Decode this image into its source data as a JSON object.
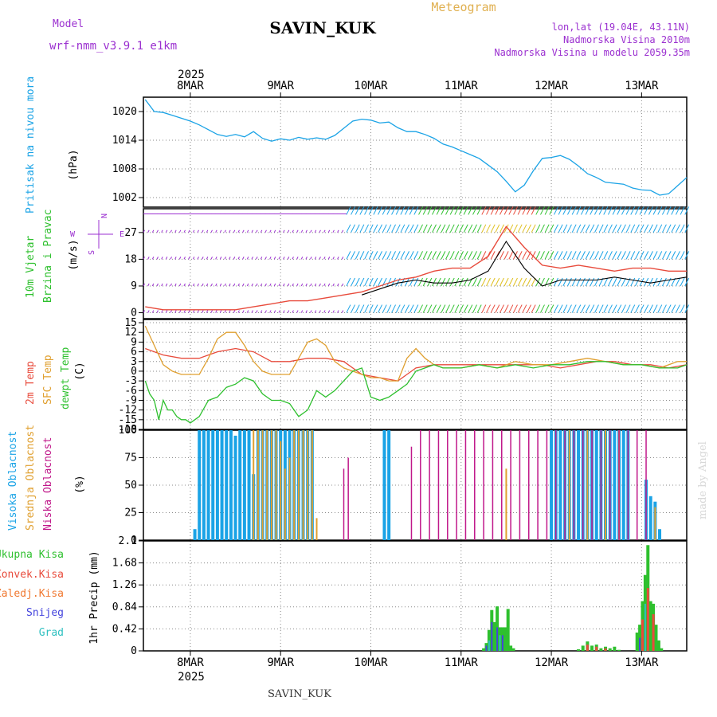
{
  "header": {
    "model_label": "Model",
    "model_name": "wrf-nmm_v3.9.1  e1km",
    "station": "SAVIN_KUK",
    "meteogram": "Meteogram",
    "lonlat": "lon,lat (19.04E, 43.11N)",
    "altitude": "Nadmorska Visina 2010m",
    "model_altitude": "Nadmorska Visina u modelu 2059.35m",
    "year_top": "2025",
    "year_bottom": "2025",
    "station_bottom": "SAVIN_KUK",
    "watermark": "made by Angel"
  },
  "colors": {
    "pressure": "#1aa3e6",
    "temp2m": "#e84b3c",
    "sfc": "#e0a030",
    "dewpt": "#2ec02e",
    "high_cloud": "#1aa3e6",
    "mid_cloud": "#e0a030",
    "low_cloud": "#c0188a",
    "total_precip": "#2ec02e",
    "conv_precip": "#e84b3c",
    "frozen_precip": "#f07830",
    "snow": "#4444dd",
    "hail": "#2ec0c0",
    "wind_label": "#2ec02e",
    "wind_compass": "#9b30d0",
    "model_text": "#9b30d0",
    "meteogram_text": "#e0b050"
  },
  "chart_data": [
    {
      "type": "line",
      "panel": "pressure",
      "ylabel_name": "Pritisak na nivou mora",
      "ylabel_unit": "(hPa)",
      "x_ticks": [
        "8MAR",
        "9MAR",
        "10MAR",
        "11MAR",
        "12MAR",
        "13MAR"
      ],
      "yticks": [
        1002,
        1008,
        1014,
        1020
      ],
      "ylim": [
        1000,
        1023
      ],
      "grid": true,
      "series": [
        {
          "x": [
            -0.5,
            -0.4,
            -0.3,
            -0.2,
            -0.1,
            0,
            0.1,
            0.2,
            0.3,
            0.4,
            0.5,
            0.6,
            0.7,
            0.8,
            0.9,
            1.0,
            1.1,
            1.2,
            1.3,
            1.4,
            1.5,
            1.6,
            1.7,
            1.8,
            1.9,
            2.0,
            2.1,
            2.2,
            2.3,
            2.4,
            2.5,
            2.6,
            2.7,
            2.8,
            2.9,
            3.0,
            3.1,
            3.2,
            3.3,
            3.4,
            3.5,
            3.6,
            3.7,
            3.8,
            3.9,
            4.0,
            4.1,
            4.2,
            4.3,
            4.4,
            4.5,
            4.6,
            4.7,
            4.8,
            4.9,
            5.0,
            5.1,
            5.2,
            5.3,
            5.4,
            5.5
          ],
          "values": [
            1022.5,
            1020,
            1019.8,
            1019.2,
            1018.6,
            1018.0,
            1017.2,
            1016.2,
            1015.2,
            1014.8,
            1015.2,
            1014.7,
            1015.8,
            1014.4,
            1013.8,
            1014.3,
            1014.0,
            1014.6,
            1014.2,
            1014.5,
            1014.2,
            1015.0,
            1016.5,
            1018.0,
            1018.4,
            1018.2,
            1017.6,
            1017.8,
            1016.6,
            1015.8,
            1015.8,
            1015.2,
            1014.4,
            1013.2,
            1012.6,
            1011.8,
            1011.0,
            1010.2,
            1008.8,
            1007.4,
            1005.4,
            1003.2,
            1004.6,
            1007.6,
            1010.2,
            1010.4,
            1010.8,
            1010.0,
            1008.6,
            1007.0,
            1006.2,
            1005.2,
            1005.0,
            1004.8,
            1004.0,
            1003.6,
            1003.5,
            1002.5,
            1002.8,
            1004.5,
            1006.2
          ]
        }
      ]
    },
    {
      "type": "line",
      "panel": "wind",
      "ylabel_name": "10m Vjetar",
      "ylabel_name2": "Brzina i Pravac",
      "ylabel_unit": "(m/s)",
      "compass": {
        "n": "N",
        "s": "S",
        "e": "E",
        "w": "W"
      },
      "yticks": [
        0,
        9,
        18,
        27
      ],
      "ylim": [
        -2,
        35
      ],
      "grid": true,
      "series": [
        {
          "name": "gust",
          "color": "#e84b3c",
          "x": [
            -0.5,
            -0.3,
            -0.1,
            0.1,
            0.3,
            0.5,
            0.7,
            0.9,
            1.1,
            1.3,
            1.5,
            1.7,
            1.9,
            2.1,
            2.3,
            2.5,
            2.7,
            2.9,
            3.1,
            3.3,
            3.5,
            3.7,
            3.9,
            4.1,
            4.3,
            4.5,
            4.7,
            4.9,
            5.1,
            5.3,
            5.5
          ],
          "values": [
            2,
            1,
            1,
            1,
            1,
            1,
            2,
            3,
            4,
            4,
            5,
            6,
            7,
            9,
            11,
            12,
            14,
            15,
            15,
            19,
            29,
            22,
            16,
            15,
            16,
            15,
            14,
            15,
            15,
            14,
            14
          ]
        },
        {
          "name": "mean",
          "color": "#000000",
          "x": [
            1.9,
            2.1,
            2.3,
            2.5,
            2.7,
            2.9,
            3.1,
            3.3,
            3.5,
            3.7,
            3.9,
            4.1,
            4.3,
            4.5,
            4.7,
            4.9,
            5.1,
            5.3,
            5.5
          ],
          "values": [
            6,
            8,
            10,
            11,
            10,
            10,
            11,
            14,
            24,
            15,
            9,
            11,
            11,
            11,
            12,
            11,
            10,
            11,
            12
          ]
        }
      ]
    },
    {
      "type": "line",
      "panel": "temperature",
      "ylabel_t2m": "2m Temp",
      "ylabel_sfc": "SFC Temp",
      "ylabel_dew": "dewpt Temp",
      "ylabel_unit": "(C)",
      "yticks": [
        -18,
        -15,
        -12,
        -9,
        -6,
        -3,
        0,
        3,
        6,
        9,
        12,
        15
      ],
      "ylim": [
        -18,
        16
      ],
      "grid": true,
      "series": [
        {
          "name": "2m Temp",
          "color": "#e84b3c",
          "x": [
            -0.5,
            -0.3,
            -0.1,
            0.1,
            0.3,
            0.5,
            0.7,
            0.9,
            1.1,
            1.3,
            1.5,
            1.7,
            1.9,
            2.1,
            2.3,
            2.5,
            2.7,
            2.9,
            3.1,
            3.3,
            3.5,
            3.7,
            3.9,
            4.1,
            4.3,
            4.5,
            4.7,
            4.9,
            5.1,
            5.3,
            5.5
          ],
          "values": [
            7,
            5,
            4,
            4,
            6,
            7,
            6,
            3,
            3,
            4,
            4,
            3,
            -1,
            -2,
            -3,
            1,
            2,
            2,
            2,
            2,
            2,
            2,
            2,
            1,
            2,
            3,
            3,
            2,
            2,
            1,
            2
          ]
        },
        {
          "name": "SFC Temp",
          "color": "#e0a030",
          "x": [
            -0.5,
            -0.4,
            -0.3,
            -0.2,
            -0.1,
            0,
            0.1,
            0.2,
            0.3,
            0.4,
            0.5,
            0.6,
            0.7,
            0.8,
            0.9,
            1.0,
            1.1,
            1.2,
            1.3,
            1.4,
            1.5,
            1.6,
            1.7,
            1.8,
            1.9,
            2.0,
            2.1,
            2.2,
            2.3,
            2.4,
            2.5,
            2.6,
            2.7,
            2.8,
            2.9,
            3.0,
            3.2,
            3.4,
            3.6,
            3.8,
            4.0,
            4.2,
            4.4,
            4.6,
            4.8,
            5.0,
            5.2,
            5.4,
            5.5
          ],
          "values": [
            14,
            8,
            2,
            0,
            -1,
            -1,
            -1,
            4,
            10,
            12,
            12,
            8,
            3,
            0,
            -1,
            -1,
            -1,
            4,
            9,
            10,
            8,
            3,
            1,
            0,
            -1,
            -2,
            -2,
            -3,
            -3,
            4,
            7,
            4,
            2,
            1,
            1,
            1,
            2,
            1,
            3,
            2,
            2,
            3,
            4,
            3,
            2,
            2,
            1,
            3,
            3
          ]
        },
        {
          "name": "dewpt Temp",
          "color": "#2ec02e",
          "x": [
            -0.5,
            -0.45,
            -0.4,
            -0.35,
            -0.3,
            -0.25,
            -0.2,
            -0.15,
            -0.1,
            -0.05,
            0,
            0.05,
            0.1,
            0.2,
            0.3,
            0.4,
            0.5,
            0.6,
            0.7,
            0.8,
            0.9,
            1.0,
            1.1,
            1.2,
            1.3,
            1.4,
            1.5,
            1.6,
            1.7,
            1.8,
            1.9,
            2.0,
            2.1,
            2.2,
            2.3,
            2.4,
            2.5,
            2.6,
            2.7,
            2.8,
            2.9,
            3.0,
            3.2,
            3.4,
            3.6,
            3.8,
            4.0,
            4.2,
            4.4,
            4.6,
            4.8,
            5.0,
            5.2,
            5.4,
            5.5
          ],
          "values": [
            -3,
            -7,
            -9,
            -15,
            -9,
            -12,
            -12,
            -14,
            -15,
            -15,
            -16,
            -15,
            -14,
            -9,
            -8,
            -5,
            -4,
            -2,
            -3,
            -7,
            -9,
            -9,
            -10,
            -14,
            -12,
            -6,
            -8,
            -6,
            -3,
            0,
            1,
            -8,
            -9,
            -8,
            -6,
            -4,
            0,
            1,
            2,
            1,
            1,
            1,
            2,
            1,
            2,
            1,
            2,
            2,
            3,
            3,
            2,
            2,
            1,
            1,
            2
          ]
        }
      ]
    },
    {
      "type": "bar",
      "panel": "cloud",
      "ylabel_high": "Visoka Oblacnost",
      "ylabel_mid": "Srednja Oblacnost",
      "ylabel_low": "Niska Oblacnost",
      "ylabel_unit": "(%)",
      "yticks": [
        0,
        25,
        50,
        75,
        100
      ],
      "ylim": [
        0,
        100
      ],
      "grid": true,
      "series": [
        {
          "name": "Visoka Oblacnost",
          "color": "#1aa3e6",
          "x": [
            0.05,
            0.1,
            0.15,
            0.2,
            0.25,
            0.3,
            0.35,
            0.4,
            0.45,
            0.5,
            0.55,
            0.6,
            0.65,
            0.7,
            0.75,
            0.8,
            0.85,
            0.9,
            0.95,
            1.0,
            1.05,
            1.1,
            1.15,
            1.2,
            1.25,
            1.3,
            1.35,
            2.15,
            2.2,
            4.0,
            4.05,
            4.1,
            4.15,
            4.2,
            4.25,
            4.3,
            4.35,
            4.4,
            4.45,
            4.5,
            4.55,
            4.6,
            4.65,
            4.7,
            4.75,
            4.8,
            4.85,
            5.05,
            5.1,
            5.15,
            5.2
          ],
          "values": [
            10,
            100,
            100,
            100,
            100,
            100,
            100,
            100,
            100,
            95,
            100,
            100,
            100,
            60,
            100,
            100,
            100,
            100,
            100,
            100,
            100,
            100,
            100,
            100,
            100,
            100,
            100,
            100,
            100,
            100,
            100,
            100,
            100,
            100,
            100,
            100,
            100,
            100,
            100,
            100,
            100,
            100,
            100,
            100,
            100,
            100,
            100,
            55,
            40,
            35,
            10
          ]
        },
        {
          "name": "Srednja Oblacnost",
          "color": "#e0a030",
          "x": [
            0.7,
            0.75,
            0.8,
            0.85,
            0.9,
            0.95,
            1.0,
            1.05,
            1.1,
            1.15,
            1.2,
            1.25,
            1.3,
            1.35,
            1.4,
            3.5,
            4.2,
            4.4,
            4.6,
            4.75,
            5.15
          ],
          "values": [
            100,
            100,
            100,
            100,
            100,
            100,
            90,
            65,
            75,
            100,
            100,
            100,
            100,
            100,
            20,
            65,
            100,
            100,
            100,
            100,
            30
          ]
        },
        {
          "name": "Niska Oblacnost",
          "color": "#c0188a",
          "x": [
            1.7,
            1.75,
            2.45,
            2.55,
            2.65,
            2.75,
            2.85,
            2.95,
            3.05,
            3.15,
            3.25,
            3.35,
            3.45,
            3.55,
            3.65,
            3.75,
            3.85,
            3.95,
            4.05,
            4.15,
            4.25,
            4.35,
            4.45,
            4.55,
            4.65,
            4.75,
            4.85,
            4.95,
            5.05
          ],
          "values": [
            65,
            75,
            85,
            100,
            100,
            100,
            100,
            100,
            100,
            100,
            100,
            100,
            100,
            100,
            100,
            100,
            100,
            100,
            100,
            100,
            100,
            100,
            100,
            100,
            100,
            100,
            100,
            100,
            100
          ]
        }
      ]
    },
    {
      "type": "bar",
      "panel": "precip",
      "legend": [
        "Ukupna Kisa",
        "Konvek.Kisa",
        "Zaledj.Kisa",
        "Snijeg",
        "Grad"
      ],
      "ylabel_unit": "1hr Precip (mm)",
      "yticks": [
        0,
        0.42,
        0.84,
        1.26,
        1.68,
        2.1
      ],
      "ylim": [
        0,
        2.1
      ],
      "x_ticks": [
        "8MAR",
        "9MAR",
        "10MAR",
        "11MAR",
        "12MAR",
        "13MAR"
      ],
      "grid": true,
      "series": [
        {
          "name": "Ukupna Kisa",
          "color": "#2ec02e",
          "x": [
            3.25,
            3.28,
            3.31,
            3.34,
            3.37,
            3.4,
            3.43,
            3.46,
            3.49,
            3.52,
            3.55,
            3.58,
            4.3,
            4.35,
            4.4,
            4.45,
            4.5,
            4.55,
            4.6,
            4.65,
            4.7,
            4.75,
            4.95,
            4.98,
            5.01,
            5.04,
            5.07,
            5.1,
            5.13,
            5.16,
            5.19,
            5.22
          ],
          "values": [
            0.05,
            0.15,
            0.4,
            0.78,
            0.55,
            0.85,
            0.45,
            0.45,
            0.45,
            0.8,
            0.1,
            0.05,
            0.03,
            0.1,
            0.18,
            0.1,
            0.12,
            0.05,
            0.08,
            0.05,
            0.08,
            0.02,
            0.35,
            0.5,
            0.95,
            1.45,
            2.02,
            0.95,
            0.9,
            0.5,
            0.2,
            0.05
          ]
        },
        {
          "name": "Konvek.Kisa",
          "color": "#e84b3c",
          "x": [
            4.4,
            4.5,
            4.6,
            5.01,
            5.07,
            5.13
          ],
          "values": [
            0.12,
            0.08,
            0.05,
            0.6,
            1.2,
            0.7
          ]
        },
        {
          "name": "Snijeg",
          "color": "#4444dd",
          "x": [
            3.28,
            3.34,
            3.4,
            3.46,
            4.98
          ],
          "values": [
            0.1,
            0.55,
            0.45,
            0.3,
            0.25
          ]
        },
        {
          "name": "Grad",
          "color": "#2ec0c0",
          "x": [
            3.31,
            3.43,
            5.04
          ],
          "values": [
            0.2,
            0.3,
            0.9
          ]
        }
      ]
    }
  ]
}
